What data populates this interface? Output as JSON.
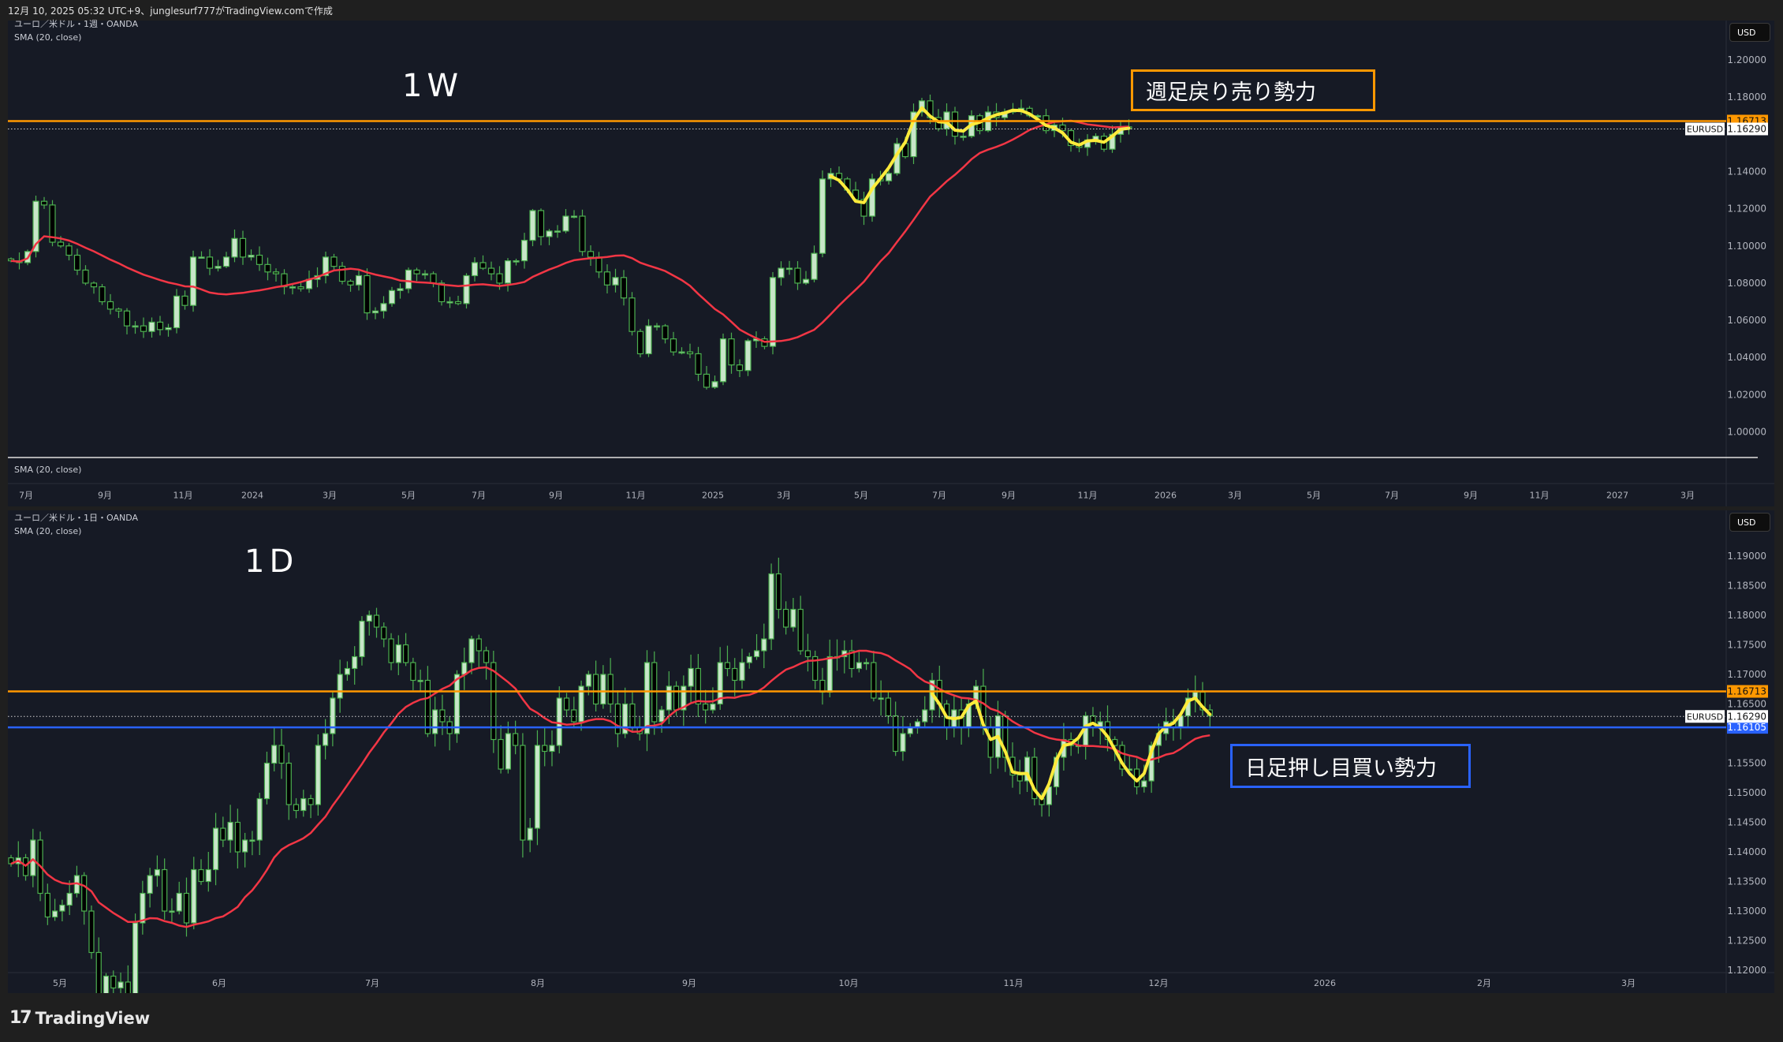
{
  "header": {
    "caption": "12月 10, 2025 05:32 UTC+9、junglesurf777がTradingView.comで作成"
  },
  "footer": {
    "logo_text": "TradingView"
  },
  "colors": {
    "up_fill": "#c8e6c9",
    "candle_border": "#4caf50",
    "down_fill": "#000000",
    "sma": "#f23645",
    "resistance": "#ff9800",
    "support": "#2962ff",
    "annotation": "#ffeb3b",
    "background": "#161a25"
  },
  "weekly": {
    "symbol_line": "ユーロ／米ドル・1週・OANDA",
    "indicator_line": "SMA (20, close)",
    "subpane_label": "SMA (20, close)",
    "timeframe_label": "1W",
    "annotation_text": "週足戻り売り勢力",
    "currency_button": "USD",
    "price_ticks": [
      "1.20000",
      "1.18000",
      "1.14000",
      "1.12000",
      "1.10000",
      "1.08000",
      "1.06000",
      "1.04000",
      "1.02000",
      "1.00000"
    ],
    "time_ticks": [
      "7月",
      "9月",
      "11月",
      "2024",
      "3月",
      "5月",
      "7月",
      "9月",
      "11月",
      "2025",
      "3月",
      "5月",
      "7月",
      "9月",
      "11月",
      "2026",
      "3月",
      "5月",
      "7月",
      "9月",
      "11月",
      "2027",
      "3月"
    ],
    "resistance_label": "1.16713",
    "last_symbol": "EURUSD",
    "last_price": "1.16290"
  },
  "daily": {
    "symbol_line": "ユーロ／米ドル・1日・OANDA",
    "indicator_line": "SMA (20, close)",
    "timeframe_label": "1D",
    "annotation_text": "日足押し目買い勢力",
    "currency_button": "USD",
    "price_ticks": [
      "1.19000",
      "1.18500",
      "1.18000",
      "1.17500",
      "1.17000",
      "1.16500",
      "1.15500",
      "1.15000",
      "1.14500",
      "1.14000",
      "1.13500",
      "1.13000",
      "1.12500",
      "1.12000"
    ],
    "time_ticks": [
      "5月",
      "6月",
      "7月",
      "8月",
      "9月",
      "10月",
      "11月",
      "12月",
      "2026",
      "2月",
      "3月"
    ],
    "resistance_label": "1.16713",
    "support_label": "1.16105",
    "last_symbol": "EURUSD",
    "last_price": "1.16290"
  },
  "chart_data": [
    {
      "type": "candlestick",
      "symbol": "EURUSD",
      "interval": "1W",
      "ylim": [
        0.99,
        1.21
      ],
      "indicator": "SMA (20, close)",
      "hlines": [
        {
          "price": 1.16713,
          "color": "#ff9800"
        }
      ],
      "last_price": 1.1629,
      "closes": [
        1.092,
        1.091,
        1.097,
        1.124,
        1.122,
        1.102,
        1.1,
        1.095,
        1.087,
        1.08,
        1.078,
        1.07,
        1.066,
        1.065,
        1.057,
        1.057,
        1.054,
        1.059,
        1.055,
        1.056,
        1.073,
        1.068,
        1.094,
        1.094,
        1.088,
        1.089,
        1.094,
        1.104,
        1.094,
        1.095,
        1.09,
        1.086,
        1.085,
        1.078,
        1.078,
        1.077,
        1.082,
        1.084,
        1.094,
        1.089,
        1.081,
        1.079,
        1.084,
        1.064,
        1.065,
        1.069,
        1.076,
        1.077,
        1.087,
        1.085,
        1.085,
        1.08,
        1.07,
        1.07,
        1.069,
        1.084,
        1.091,
        1.088,
        1.085,
        1.08,
        1.092,
        1.092,
        1.103,
        1.119,
        1.105,
        1.108,
        1.108,
        1.116,
        1.116,
        1.097,
        1.094,
        1.086,
        1.079,
        1.083,
        1.072,
        1.054,
        1.042,
        1.057,
        1.057,
        1.05,
        1.043,
        1.043,
        1.042,
        1.031,
        1.024,
        1.027,
        1.05,
        1.036,
        1.033,
        1.049,
        1.05,
        1.046,
        1.083,
        1.088,
        1.088,
        1.08,
        1.082,
        1.096,
        1.136,
        1.139,
        1.136,
        1.13,
        1.125,
        1.116,
        1.136,
        1.135,
        1.139,
        1.155,
        1.148,
        1.172,
        1.178,
        1.169,
        1.163,
        1.172,
        1.159,
        1.159,
        1.17,
        1.162,
        1.172,
        1.169,
        1.172,
        1.173,
        1.174,
        1.17,
        1.17,
        1.162,
        1.165,
        1.162,
        1.154,
        1.153,
        1.157,
        1.159,
        1.152,
        1.16,
        1.164,
        1.163
      ]
    },
    {
      "type": "candlestick",
      "symbol": "EURUSD",
      "interval": "1D",
      "ylim": [
        1.1195,
        1.1975
      ],
      "indicator": "SMA (20, close)",
      "hlines": [
        {
          "price": 1.16713,
          "color": "#ff9800"
        },
        {
          "price": 1.16105,
          "color": "#2962ff"
        }
      ],
      "last_price": 1.1629,
      "closes": [
        1.138,
        1.139,
        1.136,
        1.142,
        1.133,
        1.129,
        1.13,
        1.131,
        1.133,
        1.136,
        1.13,
        1.123,
        1.109,
        1.119,
        1.117,
        1.118,
        1.116,
        1.128,
        1.133,
        1.136,
        1.137,
        1.13,
        1.13,
        1.133,
        1.128,
        1.137,
        1.135,
        1.137,
        1.144,
        1.142,
        1.145,
        1.14,
        1.142,
        1.142,
        1.149,
        1.155,
        1.158,
        1.155,
        1.148,
        1.147,
        1.149,
        1.148,
        1.158,
        1.16,
        1.166,
        1.17,
        1.171,
        1.173,
        1.179,
        1.18,
        1.178,
        1.176,
        1.172,
        1.175,
        1.172,
        1.169,
        1.169,
        1.16,
        1.164,
        1.162,
        1.16,
        1.17,
        1.172,
        1.176,
        1.174,
        1.172,
        1.159,
        1.154,
        1.16,
        1.158,
        1.142,
        1.144,
        1.158,
        1.157,
        1.158,
        1.166,
        1.164,
        1.162,
        1.168,
        1.17,
        1.165,
        1.17,
        1.165,
        1.16,
        1.165,
        1.161,
        1.16,
        1.172,
        1.162,
        1.164,
        1.168,
        1.164,
        1.168,
        1.171,
        1.165,
        1.164,
        1.165,
        1.172,
        1.171,
        1.169,
        1.172,
        1.173,
        1.174,
        1.176,
        1.187,
        1.181,
        1.178,
        1.181,
        1.174,
        1.173,
        1.169,
        1.167,
        1.173,
        1.173,
        1.174,
        1.171,
        1.172,
        1.172,
        1.166,
        1.166,
        1.163,
        1.157,
        1.16,
        1.161,
        1.162,
        1.164,
        1.169,
        1.165,
        1.161,
        1.164,
        1.161,
        1.165,
        1.168,
        1.161,
        1.156,
        1.163,
        1.156,
        1.153,
        1.152,
        1.156,
        1.149,
        1.148,
        1.151,
        1.156,
        1.159,
        1.158,
        1.158,
        1.163,
        1.161,
        1.162,
        1.159,
        1.158,
        1.154,
        1.154,
        1.151,
        1.152,
        1.158,
        1.16,
        1.162,
        1.161,
        1.163,
        1.166,
        1.167,
        1.164,
        1.163
      ]
    }
  ]
}
